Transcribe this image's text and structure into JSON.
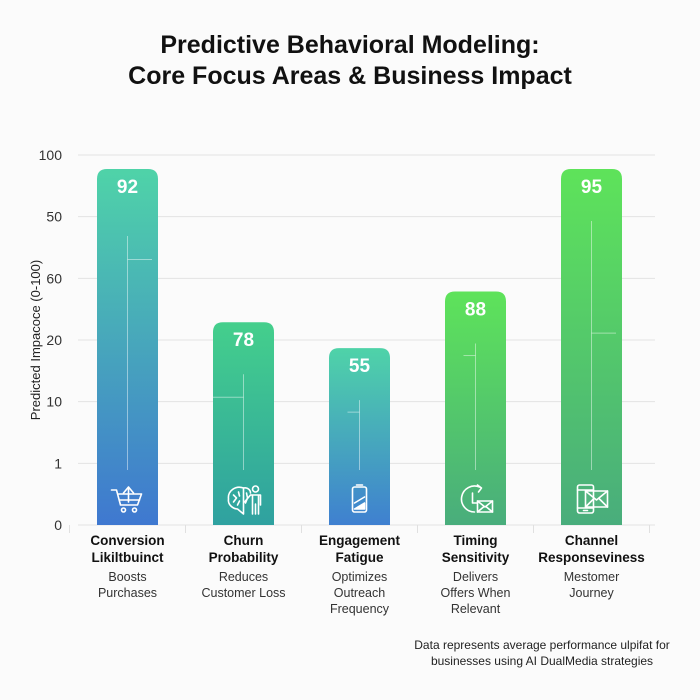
{
  "title_line1": "Predictive Behavioral Modeling:",
  "title_line2": "Core Focus Areas & Business Impact",
  "footnote_line1": "Data represents average performance ulpifat for",
  "footnote_line2": "businesses using AI DualMedia strategies",
  "chart_data": {
    "type": "bar",
    "title": "Predictive Behavioral Modeling: Core Focus Areas & Business Impact",
    "xlabel": "",
    "ylabel": "Predicted Impacoce (0-100)",
    "ylim": [
      0,
      100
    ],
    "y_tick_labels": [
      "0",
      "1",
      "10",
      "20",
      "60",
      "50",
      "100"
    ],
    "grid": true,
    "legend": "none",
    "categories": [
      "Conversion Likiltbuinct",
      "Churn Probability",
      "Engagement Fatigue",
      "Timing Sensitivity",
      "Channel Responseviness"
    ],
    "values": [
      92,
      78,
      55,
      88,
      95
    ],
    "value_labels": [
      "92",
      "78",
      "55",
      "88",
      "95"
    ],
    "bars": [
      {
        "label_line1": "Conversion",
        "label_line2": "Likiltbuinct",
        "desc": [
          "Boosts",
          "Purchases"
        ],
        "icon": "shopping-cart-upload-icon",
        "value": 92,
        "display_level": 0.962,
        "color_top": "#4fd3a8",
        "color_bottom": "#3f78d0"
      },
      {
        "label_line1": "Churn",
        "label_line2": "Probability",
        "desc": [
          "Reduces",
          "Customer Loss"
        ],
        "icon": "brain-person-icon",
        "value": 78,
        "display_level": 0.548,
        "color_top": "#44cf8c",
        "color_bottom": "#2fa1a0"
      },
      {
        "label_line1": "Engagement",
        "label_line2": "Fatigue",
        "desc": [
          "Optimizes",
          "Outreach",
          "Frequency"
        ],
        "icon": "battery-low-icon",
        "value": 55,
        "display_level": 0.478,
        "color_top": "#4fd3a8",
        "color_bottom": "#3f80d0"
      },
      {
        "label_line1": "Timing",
        "label_line2": "Sensitivity",
        "desc": [
          "Delivers",
          "Offers When",
          "Relevant"
        ],
        "icon": "clock-mail-icon",
        "value": 88,
        "display_level": 0.631,
        "color_top": "#5ee35a",
        "color_bottom": "#49ad7c"
      },
      {
        "label_line1": "Channel",
        "label_line2": "Responseviness",
        "desc": [
          "Mestomer",
          "Journey"
        ],
        "icon": "phone-mail-icon",
        "value": 95,
        "display_level": 0.962,
        "color_top": "#5ee35a",
        "color_bottom": "#49ad7c"
      }
    ]
  }
}
